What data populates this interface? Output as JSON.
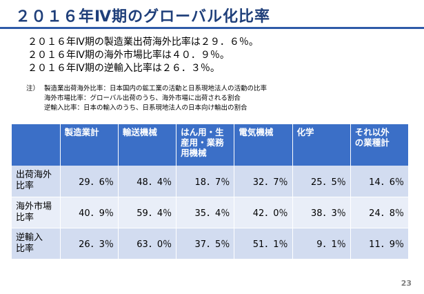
{
  "slide": {
    "title": "２０１６年Ⅳ期のグローバル化比率",
    "page_number": "23"
  },
  "summary": [
    "２０１６年Ⅳ期の製造業出荷海外比率は２９．６％。",
    "２０１６年Ⅳ期の海外市場比率は４０．９％。",
    "２０１６年Ⅳ期の逆輸入比率は２６．３％。"
  ],
  "notes": {
    "lead": "注）",
    "lines": [
      "製造業出荷海外比率：日本国内の鉱工業の活動と日系現地法人の活動の比率",
      "海外市場比率：グローバル出荷のうち、海外市場に出荷される割合",
      "逆輸入比率：日本の輸入のうち、日系現地法人の日本向け輸出の割合"
    ]
  },
  "table": {
    "columns": [
      [
        "製造業計"
      ],
      [
        "輸送機械"
      ],
      [
        "はん用・生",
        "産用・業務",
        "用機械"
      ],
      [
        "電気機械"
      ],
      [
        "化学"
      ],
      [
        "それ以外",
        "の業種計"
      ]
    ],
    "rows": [
      {
        "label": [
          "出荷海外",
          "比率"
        ],
        "values": [
          "29．6％",
          "48．4％",
          "18．7％",
          "32．7％",
          "25．5％",
          "14．6％"
        ]
      },
      {
        "label": [
          "海外市場",
          "比率"
        ],
        "values": [
          "40．9％",
          "59．4％",
          "35．4％",
          "42．0％",
          "38．3％",
          "24．8％"
        ]
      },
      {
        "label": [
          "逆輸入",
          "比率"
        ],
        "values": [
          "26．3％",
          "63．0％",
          "37．5％",
          "51．1％",
          "9．1％",
          "11．9％"
        ]
      }
    ]
  },
  "colors": {
    "title": "#1f3f7a",
    "header_bg": "#3b6fc7",
    "row_odd": "#d2dcf0",
    "row_even": "#e9eef8"
  }
}
